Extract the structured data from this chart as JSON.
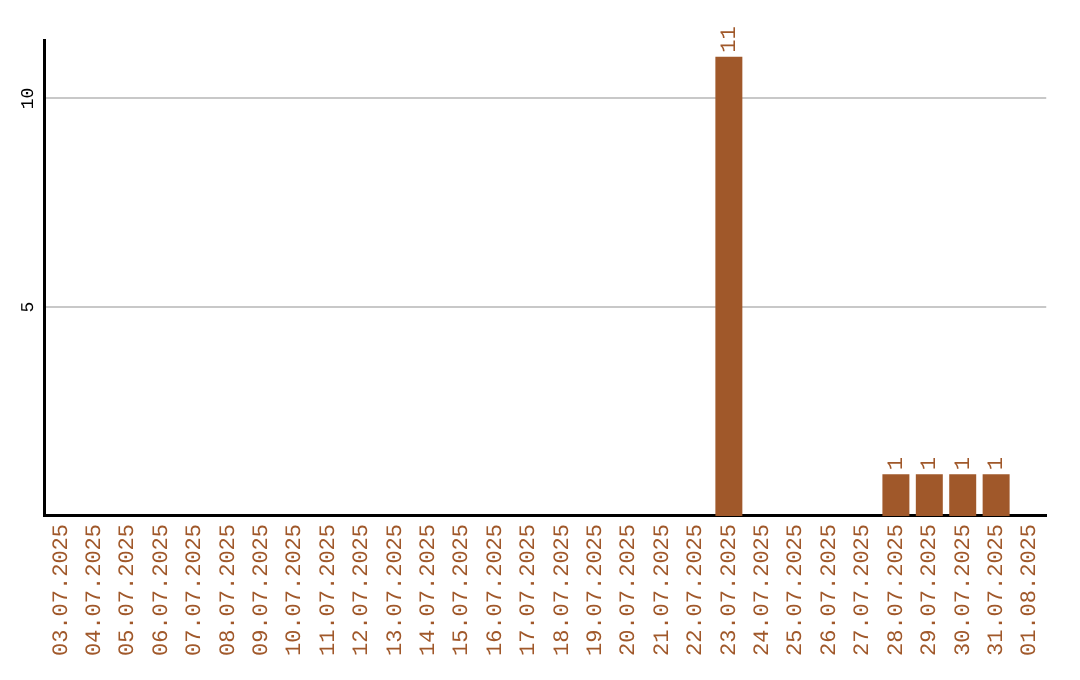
{
  "chart_data": {
    "type": "bar",
    "categories": [
      "03.07.2025",
      "04.07.2025",
      "05.07.2025",
      "06.07.2025",
      "07.07.2025",
      "08.07.2025",
      "09.07.2025",
      "10.07.2025",
      "11.07.2025",
      "12.07.2025",
      "13.07.2025",
      "14.07.2025",
      "15.07.2025",
      "16.07.2025",
      "17.07.2025",
      "18.07.2025",
      "19.07.2025",
      "20.07.2025",
      "21.07.2025",
      "22.07.2025",
      "23.07.2025",
      "24.07.2025",
      "25.07.2025",
      "26.07.2025",
      "27.07.2025",
      "28.07.2025",
      "29.07.2025",
      "30.07.2025",
      "31.07.2025",
      "01.08.2025"
    ],
    "values": [
      0,
      0,
      0,
      0,
      0,
      0,
      0,
      0,
      0,
      0,
      0,
      0,
      0,
      0,
      0,
      0,
      0,
      0,
      0,
      0,
      11,
      0,
      0,
      0,
      0,
      1,
      1,
      1,
      1,
      0
    ],
    "value_labels": [
      null,
      null,
      null,
      null,
      null,
      null,
      null,
      null,
      null,
      null,
      null,
      null,
      null,
      null,
      null,
      null,
      null,
      null,
      null,
      null,
      "11",
      null,
      null,
      null,
      null,
      "1",
      "1",
      "1",
      "1",
      null
    ],
    "color": "#a0582a",
    "ylim": [
      0,
      11.4
    ],
    "yticks": [
      5,
      10
    ],
    "grid": "y"
  }
}
